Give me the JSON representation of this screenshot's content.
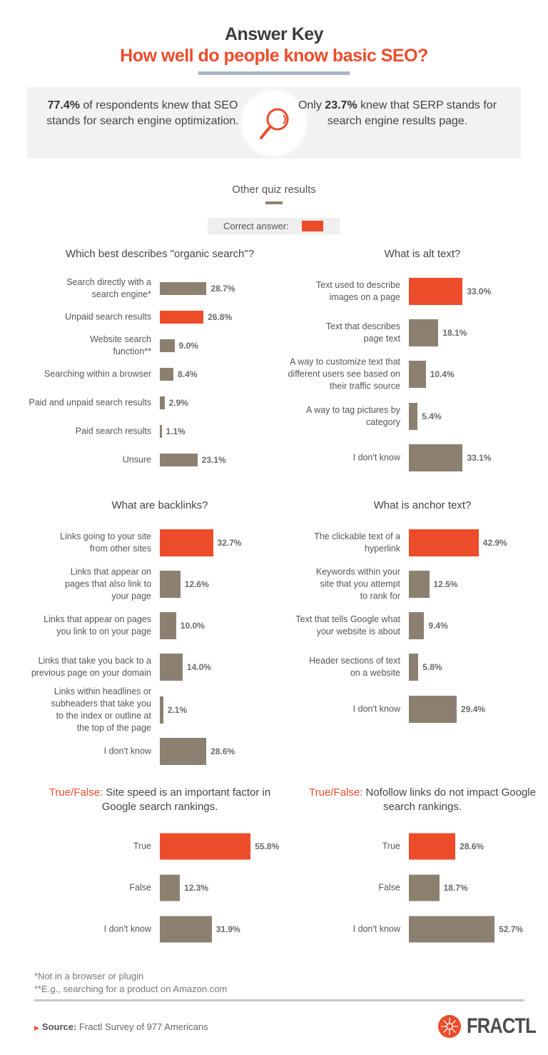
{
  "header": {
    "title": "Answer Key",
    "subtitle": "How well do people know basic SEO?"
  },
  "stats": {
    "left_value": "77.4%",
    "left_text": " of respondents knew that SEO stands for search engine optimization.",
    "right_prefix": "Only ",
    "right_value": "23.7%",
    "right_text": " knew that SERP stands for search engine results page.",
    "icon": "magnifying-glass-icon"
  },
  "section_title": "Other quiz results",
  "legend": {
    "label": "Correct answer:",
    "color": "#ec4c2a"
  },
  "colors": {
    "correct": "#ec4c2a",
    "other": "#8c8070"
  },
  "chart_data": [
    {
      "type": "bar",
      "title": "Which best describes \"organic search\"?",
      "labels": [
        "Search directly with a\nsearch engine*",
        "Unpaid search results",
        "Website search\nfunction**",
        "Searching within a browser",
        "Paid and unpaid search results",
        "Paid search results",
        "Unsure"
      ],
      "values": [
        28.7,
        26.8,
        9.0,
        8.4,
        2.9,
        1.1,
        23.1
      ],
      "correct_index": 1
    },
    {
      "type": "bar",
      "title": "What is alt text?",
      "labels": [
        "Text used to describe\nimages on a page",
        "Text that describes\npage text",
        "A way to customize text that\ndifferent users see based on\ntheir traffic source",
        "A way to tag pictures by\ncategory",
        "I don't know"
      ],
      "values": [
        33.0,
        18.1,
        10.4,
        5.4,
        33.1
      ],
      "correct_index": 0
    },
    {
      "type": "bar",
      "title": "What are backlinks?",
      "labels": [
        "Links going to your site\nfrom other sites",
        "Links that appear on\npages that also link to\nyour page",
        "Links that appear on pages\nyou link to on your page",
        "Links that take you back to a\nprevious page on your domain",
        "Links within headlines or\nsubheaders that take you\nto the index or outline at\nthe top of the page",
        "I don't know"
      ],
      "values": [
        32.7,
        12.6,
        10.0,
        14.0,
        2.1,
        28.6
      ],
      "correct_index": 0
    },
    {
      "type": "bar",
      "title": "What is anchor text?",
      "labels": [
        "The clickable text of a\nhyperlink",
        "Keywords within your\nsite that you attempt\nto rank for",
        "Text that tells Google what\nyour website is about",
        "Header sections of text\non a website",
        "I don't know"
      ],
      "values": [
        42.9,
        12.5,
        9.4,
        5.8,
        29.4
      ],
      "correct_index": 0
    },
    {
      "type": "bar",
      "title_prefix": "True/False:",
      "title": " Site speed is an important factor in Google search rankings.",
      "labels": [
        "True",
        "False",
        "I don't know"
      ],
      "values": [
        55.8,
        12.3,
        31.9
      ],
      "correct_index": 0
    },
    {
      "type": "bar",
      "title_prefix": "True/False:",
      "title": " Nofollow links do not impact Google search rankings.",
      "labels": [
        "True",
        "False",
        "I don't know"
      ],
      "values": [
        28.6,
        18.7,
        52.7
      ],
      "correct_index": 0
    }
  ],
  "footnotes": [
    "*Not in a browser or plugin",
    "**E.g., searching for a product on Amazon.com"
  ],
  "source": {
    "label": "Source:",
    "text": " Fractl Survey of 977 Americans"
  },
  "logo": {
    "text": "FRACTL"
  }
}
